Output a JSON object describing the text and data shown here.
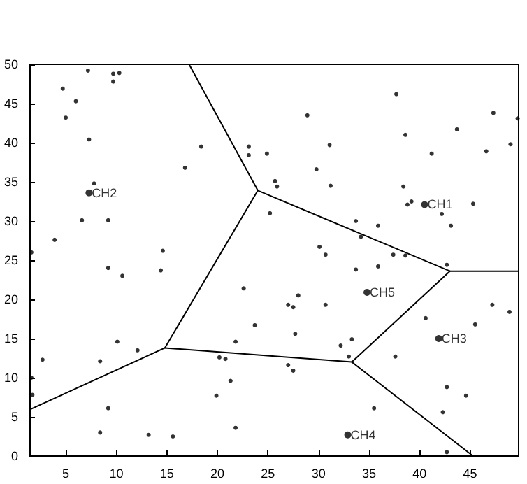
{
  "chart_data": {
    "type": "scatter",
    "xlim": [
      1.4,
      49.8
    ],
    "ylim": [
      0,
      50
    ],
    "xticks": [
      5,
      10,
      15,
      20,
      25,
      30,
      35,
      40,
      45
    ],
    "yticks": [
      0,
      5,
      10,
      15,
      20,
      25,
      30,
      35,
      40,
      45,
      50
    ],
    "grid": false,
    "marker": "circle",
    "series": [
      {
        "color": "#000000",
        "x": [
          7.2,
          9.7,
          10.3,
          9.7,
          4.7,
          6.0,
          5.0,
          7.3,
          18.4,
          23.1,
          23.1,
          24.9,
          16.8,
          7.8,
          6.6,
          9.2,
          3.9,
          14.6,
          1.6,
          37.7,
          28.9,
          47.3,
          49.7,
          43.7,
          38.6,
          31.1,
          49.0,
          46.6,
          41.2,
          29.8,
          25.7,
          25.9,
          31.2,
          38.4,
          25.2,
          38.8,
          39.2,
          45.3,
          42.2,
          43.1,
          33.7,
          35.9,
          34.2,
          30.1,
          30.7,
          37.4,
          38.6,
          42.7,
          9.2,
          10.6,
          14.4,
          22.6,
          23.7,
          2.7,
          8.4,
          10.1,
          12.1,
          21.8,
          20.2,
          20.8,
          21.3,
          1.6,
          1.7,
          19.9,
          9.2,
          8.4,
          13.2,
          15.6,
          21.8,
          35.9,
          33.7,
          28.0,
          27.0,
          27.5,
          30.7,
          40.6,
          47.2,
          48.9,
          45.5,
          27.7,
          32.2,
          33.3,
          33.0,
          37.6,
          27.0,
          27.5,
          42.7,
          44.6,
          35.5,
          42.3,
          42.7
        ],
        "values": [
          49.2,
          48.8,
          48.9,
          47.8,
          46.9,
          45.3,
          43.2,
          40.4,
          39.5,
          39.5,
          38.4,
          38.6,
          36.8,
          34.8,
          30.1,
          30.1,
          27.6,
          26.2,
          26.0,
          46.2,
          43.5,
          43.8,
          43.1,
          41.7,
          41.0,
          39.7,
          39.8,
          38.9,
          38.6,
          36.6,
          35.1,
          34.4,
          34.5,
          34.4,
          31.0,
          32.1,
          32.5,
          32.2,
          30.9,
          29.4,
          30.0,
          29.4,
          28.0,
          26.7,
          25.7,
          25.7,
          25.6,
          24.4,
          24.0,
          23.0,
          23.7,
          21.4,
          16.7,
          12.3,
          12.1,
          14.6,
          13.5,
          14.6,
          12.6,
          12.4,
          9.6,
          10.0,
          7.8,
          7.7,
          6.1,
          3.0,
          2.7,
          2.5,
          3.6,
          24.2,
          23.8,
          20.5,
          19.3,
          19.0,
          19.3,
          17.6,
          19.3,
          18.4,
          16.8,
          15.6,
          14.1,
          14.9,
          12.7,
          12.7,
          11.6,
          10.9,
          8.8,
          7.7,
          6.1,
          5.6,
          0.5
        ]
      },
      {
        "color": "#000000",
        "marker": "circle",
        "x": [
          40.5,
          7.3,
          41.9,
          32.9,
          34.8
        ],
        "values": [
          32.1,
          33.6,
          15.0,
          2.7,
          20.9
        ]
      },
      {
        "type": "line",
        "color": "#000000",
        "marker": "none",
        "x": [
          17.2,
          24.0,
          43.0,
          49.8
        ],
        "values": [
          50,
          33.9,
          23.6,
          23.6
        ]
      },
      {
        "type": "line",
        "color": "#000000",
        "marker": "none",
        "x": [
          24.0,
          14.8,
          1.4
        ],
        "values": [
          33.9,
          13.8,
          5.9
        ]
      },
      {
        "type": "line",
        "color": "#000000",
        "marker": "none",
        "x": [
          14.8,
          33.3,
          45.3
        ],
        "values": [
          13.8,
          12.0,
          0
        ]
      },
      {
        "type": "line",
        "color": "#000000",
        "marker": "none",
        "x": [
          33.3,
          43.0
        ],
        "values": [
          12.0,
          23.6
        ]
      }
    ],
    "annotations": [
      {
        "text": "CH1",
        "x": 40.5,
        "y": 32.1
      },
      {
        "text": "CH2",
        "x": 7.3,
        "y": 33.6
      },
      {
        "text": "CH3",
        "x": 41.9,
        "y": 15.0
      },
      {
        "text": "CH4",
        "x": 32.9,
        "y": 2.7
      },
      {
        "text": "CH5",
        "x": 34.8,
        "y": 20.9
      }
    ]
  }
}
